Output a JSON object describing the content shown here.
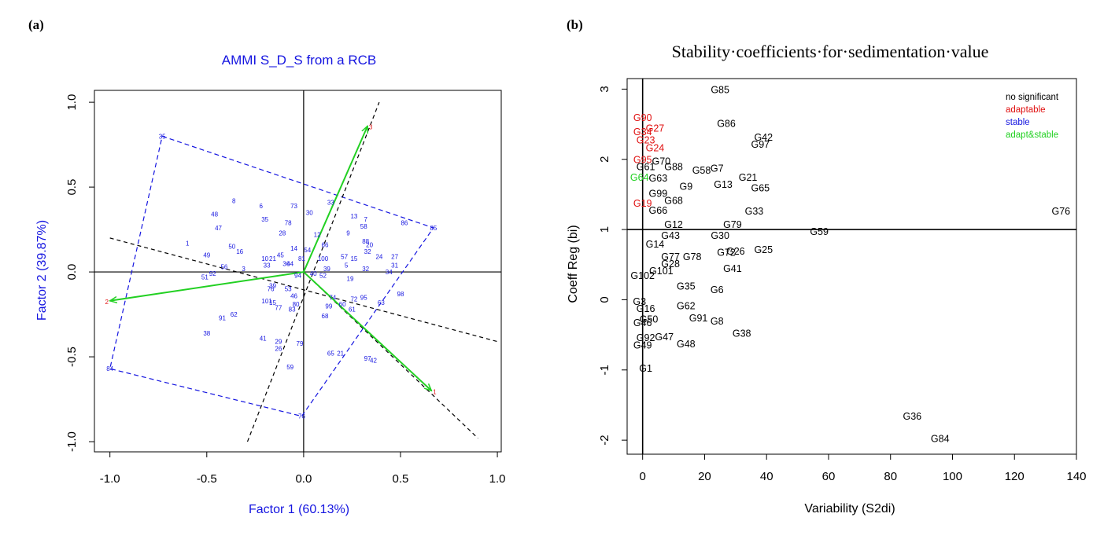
{
  "panels": {
    "a": "(a)",
    "b": "(b)"
  },
  "colors": {
    "blue": "#1515e0",
    "red": "#e01010",
    "green": "#22d022",
    "black": "#000000"
  },
  "chart_data": [
    {
      "type": "scatter",
      "title": "AMMI S_D_S from a RCB",
      "xlabel": "Factor 1 (60.13%)",
      "ylabel": "Factor 2 (39.87%)",
      "xlim": [
        -1.08,
        1.02
      ],
      "ylim": [
        -1.06,
        1.07
      ],
      "xticks": [
        "-1.0",
        "-0.5",
        "0.0",
        "0.5",
        "1.0"
      ],
      "yticks": [
        "-1.0",
        "-0.5",
        "0.0",
        "0.5",
        "1.0"
      ],
      "environments": [
        {
          "label": "1",
          "x": 0.66,
          "y": -0.7
        },
        {
          "label": "2",
          "x": -1.0,
          "y": -0.17
        },
        {
          "label": "3",
          "x": 0.33,
          "y": 0.86
        }
      ],
      "hull": [
        [
          -0.73,
          0.8
        ],
        [
          0.67,
          0.26
        ],
        [
          -0.01,
          -0.85
        ],
        [
          -1.0,
          -0.57
        ]
      ],
      "boundary_lines": [
        [
          [
            -1.0,
            0.2
          ],
          [
            1.0,
            -0.41
          ]
        ],
        [
          [
            -0.29,
            -1.0
          ],
          [
            0.39,
            1.0
          ]
        ],
        [
          [
            0.0,
            0.0
          ],
          [
            0.9,
            -0.98
          ]
        ]
      ],
      "genotypes": [
        {
          "label": "35",
          "x": -0.73,
          "y": 0.8
        },
        {
          "label": "8",
          "x": -0.36,
          "y": 0.42
        },
        {
          "label": "6",
          "x": -0.22,
          "y": 0.39
        },
        {
          "label": "73",
          "x": -0.05,
          "y": 0.39
        },
        {
          "label": "33",
          "x": 0.14,
          "y": 0.41
        },
        {
          "label": "48",
          "x": -0.46,
          "y": 0.34
        },
        {
          "label": "47",
          "x": -0.44,
          "y": 0.26
        },
        {
          "label": "35",
          "x": -0.2,
          "y": 0.31
        },
        {
          "label": "78",
          "x": -0.08,
          "y": 0.29
        },
        {
          "label": "28",
          "x": -0.11,
          "y": 0.23
        },
        {
          "label": "30",
          "x": 0.03,
          "y": 0.35
        },
        {
          "label": "13",
          "x": 0.26,
          "y": 0.33
        },
        {
          "label": "7",
          "x": 0.32,
          "y": 0.31
        },
        {
          "label": "58",
          "x": 0.31,
          "y": 0.27
        },
        {
          "label": "9",
          "x": 0.23,
          "y": 0.23
        },
        {
          "label": "86",
          "x": 0.52,
          "y": 0.29
        },
        {
          "label": "85",
          "x": 0.67,
          "y": 0.26
        },
        {
          "label": "12",
          "x": 0.07,
          "y": 0.22
        },
        {
          "label": "1",
          "x": -0.6,
          "y": 0.17
        },
        {
          "label": "50",
          "x": -0.37,
          "y": 0.15
        },
        {
          "label": "16",
          "x": -0.33,
          "y": 0.12
        },
        {
          "label": "14",
          "x": -0.05,
          "y": 0.14
        },
        {
          "label": "54",
          "x": 0.02,
          "y": 0.13
        },
        {
          "label": "66",
          "x": 0.11,
          "y": 0.16
        },
        {
          "label": "88",
          "x": 0.32,
          "y": 0.18
        },
        {
          "label": "20",
          "x": 0.34,
          "y": 0.16
        },
        {
          "label": "32",
          "x": 0.33,
          "y": 0.12
        },
        {
          "label": "49",
          "x": -0.5,
          "y": 0.1
        },
        {
          "label": "10",
          "x": -0.2,
          "y": 0.08
        },
        {
          "label": "21",
          "x": -0.16,
          "y": 0.08
        },
        {
          "label": "45",
          "x": -0.12,
          "y": 0.1
        },
        {
          "label": "81",
          "x": -0.01,
          "y": 0.08
        },
        {
          "label": "100",
          "x": 0.1,
          "y": 0.08
        },
        {
          "label": "57",
          "x": 0.21,
          "y": 0.09
        },
        {
          "label": "15",
          "x": 0.26,
          "y": 0.08
        },
        {
          "label": "24",
          "x": 0.39,
          "y": 0.09
        },
        {
          "label": "27",
          "x": 0.47,
          "y": 0.09
        },
        {
          "label": "3",
          "x": -0.31,
          "y": 0.02
        },
        {
          "label": "56",
          "x": -0.41,
          "y": 0.03
        },
        {
          "label": "33",
          "x": -0.19,
          "y": 0.04
        },
        {
          "label": "36",
          "x": -0.09,
          "y": 0.05
        },
        {
          "label": "44",
          "x": -0.07,
          "y": 0.05
        },
        {
          "label": "5",
          "x": 0.22,
          "y": 0.04
        },
        {
          "label": "32",
          "x": 0.32,
          "y": 0.02
        },
        {
          "label": "31",
          "x": 0.47,
          "y": 0.04
        },
        {
          "label": "34",
          "x": 0.44,
          "y": 0.0
        },
        {
          "label": "51",
          "x": -0.51,
          "y": -0.03
        },
        {
          "label": "92",
          "x": -0.47,
          "y": -0.01
        },
        {
          "label": "94",
          "x": -0.03,
          "y": -0.02
        },
        {
          "label": "40",
          "x": 0.05,
          "y": -0.01
        },
        {
          "label": "39",
          "x": 0.12,
          "y": 0.02
        },
        {
          "label": "52",
          "x": 0.1,
          "y": -0.02
        },
        {
          "label": "19",
          "x": 0.24,
          "y": -0.04
        },
        {
          "label": "39",
          "x": -0.16,
          "y": -0.08
        },
        {
          "label": "76",
          "x": -0.17,
          "y": -0.1
        },
        {
          "label": "53",
          "x": -0.08,
          "y": -0.1
        },
        {
          "label": "74",
          "x": 0.15,
          "y": -0.15
        },
        {
          "label": "72",
          "x": 0.26,
          "y": -0.16
        },
        {
          "label": "95",
          "x": 0.31,
          "y": -0.15
        },
        {
          "label": "98",
          "x": 0.5,
          "y": -0.13
        },
        {
          "label": "63",
          "x": 0.4,
          "y": -0.18
        },
        {
          "label": "101",
          "x": -0.19,
          "y": -0.17
        },
        {
          "label": "15",
          "x": -0.16,
          "y": -0.18
        },
        {
          "label": "77",
          "x": -0.13,
          "y": -0.21
        },
        {
          "label": "46",
          "x": -0.05,
          "y": -0.14
        },
        {
          "label": "99",
          "x": 0.13,
          "y": -0.2
        },
        {
          "label": "60",
          "x": 0.2,
          "y": -0.19
        },
        {
          "label": "61",
          "x": 0.25,
          "y": -0.22
        },
        {
          "label": "80",
          "x": -0.04,
          "y": -0.19
        },
        {
          "label": "83",
          "x": -0.06,
          "y": -0.22
        },
        {
          "label": "91",
          "x": -0.42,
          "y": -0.27
        },
        {
          "label": "62",
          "x": -0.36,
          "y": -0.25
        },
        {
          "label": "68",
          "x": 0.11,
          "y": -0.26
        },
        {
          "label": "38",
          "x": -0.5,
          "y": -0.36
        },
        {
          "label": "41",
          "x": -0.21,
          "y": -0.39
        },
        {
          "label": "29",
          "x": -0.13,
          "y": -0.41
        },
        {
          "label": "26",
          "x": -0.13,
          "y": -0.45
        },
        {
          "label": "79",
          "x": -0.02,
          "y": -0.42
        },
        {
          "label": "65",
          "x": 0.14,
          "y": -0.48
        },
        {
          "label": "21",
          "x": 0.19,
          "y": -0.48
        },
        {
          "label": "97",
          "x": 0.33,
          "y": -0.51
        },
        {
          "label": "42",
          "x": 0.36,
          "y": -0.52
        },
        {
          "label": "59",
          "x": -0.07,
          "y": -0.56
        },
        {
          "label": "84",
          "x": -1.0,
          "y": -0.57
        },
        {
          "label": "76",
          "x": -0.01,
          "y": -0.85
        }
      ]
    },
    {
      "type": "scatter",
      "title": "Stability·coefficients·for·sedimentation·value",
      "xlabel": "Variability (S2di)",
      "ylabel": "Coeff Reg (bi)",
      "xlim": [
        -5,
        140
      ],
      "ylim": [
        -2.2,
        3.15
      ],
      "xticks": [
        "0",
        "20",
        "40",
        "60",
        "80",
        "100",
        "120",
        "140"
      ],
      "yticks": [
        "-2",
        "-1",
        "0",
        "1",
        "2",
        "3"
      ],
      "ref_x": 0,
      "ref_y": 1,
      "legend": [
        {
          "label": "no significant",
          "color": "#000000"
        },
        {
          "label": "adaptable",
          "color": "#e01010"
        },
        {
          "label": "stable",
          "color": "#1515e0"
        },
        {
          "label": "adapt&stable",
          "color": "#22d022"
        }
      ],
      "legend_position": "top-right",
      "genotypes": [
        {
          "label": "G85",
          "x": 25,
          "y": 3.0,
          "group": "ns"
        },
        {
          "label": "G90",
          "x": 0,
          "y": 2.6,
          "group": "adaptable"
        },
        {
          "label": "G27",
          "x": 4,
          "y": 2.45,
          "group": "adaptable"
        },
        {
          "label": "G34",
          "x": 0,
          "y": 2.4,
          "group": "adaptable"
        },
        {
          "label": "G23",
          "x": 1,
          "y": 2.28,
          "group": "adaptable"
        },
        {
          "label": "G24",
          "x": 4,
          "y": 2.17,
          "group": "adaptable"
        },
        {
          "label": "G86",
          "x": 27,
          "y": 2.52,
          "group": "ns"
        },
        {
          "label": "G42",
          "x": 39,
          "y": 2.32,
          "group": "ns"
        },
        {
          "label": "G97",
          "x": 38,
          "y": 2.22,
          "group": "ns"
        },
        {
          "label": "G95",
          "x": 0,
          "y": 2.0,
          "group": "adaptable"
        },
        {
          "label": "G70",
          "x": 6,
          "y": 1.98,
          "group": "ns"
        },
        {
          "label": "G88",
          "x": 10,
          "y": 1.9,
          "group": "ns"
        },
        {
          "label": "G58",
          "x": 19,
          "y": 1.85,
          "group": "ns"
        },
        {
          "label": "G7",
          "x": 24,
          "y": 1.88,
          "group": "ns"
        },
        {
          "label": "G61",
          "x": 1,
          "y": 1.9,
          "group": "ns"
        },
        {
          "label": "G21",
          "x": 34,
          "y": 1.75,
          "group": "ns"
        },
        {
          "label": "G64",
          "x": -1,
          "y": 1.75,
          "group": "adapt&stable"
        },
        {
          "label": "G63",
          "x": 5,
          "y": 1.74,
          "group": "ns"
        },
        {
          "label": "G13",
          "x": 26,
          "y": 1.65,
          "group": "ns"
        },
        {
          "label": "G65",
          "x": 38,
          "y": 1.6,
          "group": "ns"
        },
        {
          "label": "G9",
          "x": 14,
          "y": 1.62,
          "group": "ns"
        },
        {
          "label": "G99",
          "x": 5,
          "y": 1.52,
          "group": "ns"
        },
        {
          "label": "G68",
          "x": 10,
          "y": 1.42,
          "group": "ns"
        },
        {
          "label": "G19",
          "x": 0,
          "y": 1.38,
          "group": "adaptable"
        },
        {
          "label": "G66",
          "x": 5,
          "y": 1.28,
          "group": "ns"
        },
        {
          "label": "G33",
          "x": 36,
          "y": 1.27,
          "group": "ns"
        },
        {
          "label": "G12",
          "x": 10,
          "y": 1.08,
          "group": "ns"
        },
        {
          "label": "G79",
          "x": 29,
          "y": 1.08,
          "group": "ns"
        },
        {
          "label": "G59",
          "x": 57,
          "y": 0.98,
          "group": "ns"
        },
        {
          "label": "G76",
          "x": 135,
          "y": 1.27,
          "group": "ns"
        },
        {
          "label": "G43",
          "x": 9,
          "y": 0.92,
          "group": "ns"
        },
        {
          "label": "G30",
          "x": 25,
          "y": 0.92,
          "group": "ns"
        },
        {
          "label": "G14",
          "x": 4,
          "y": 0.8,
          "group": "ns"
        },
        {
          "label": "G25",
          "x": 39,
          "y": 0.72,
          "group": "ns"
        },
        {
          "label": "G26",
          "x": 30,
          "y": 0.7,
          "group": "ns"
        },
        {
          "label": "G72",
          "x": 27,
          "y": 0.68,
          "group": "ns"
        },
        {
          "label": "G77",
          "x": 9,
          "y": 0.62,
          "group": "ns"
        },
        {
          "label": "G78",
          "x": 16,
          "y": 0.62,
          "group": "ns"
        },
        {
          "label": "G28",
          "x": 9,
          "y": 0.52,
          "group": "ns"
        },
        {
          "label": "G41",
          "x": 29,
          "y": 0.45,
          "group": "ns"
        },
        {
          "label": "G101",
          "x": 6,
          "y": 0.42,
          "group": "ns"
        },
        {
          "label": "G102",
          "x": 0,
          "y": 0.35,
          "group": "ns"
        },
        {
          "label": "G35",
          "x": 14,
          "y": 0.2,
          "group": "ns"
        },
        {
          "label": "G6",
          "x": 24,
          "y": 0.15,
          "group": "ns"
        },
        {
          "label": "G3",
          "x": -1,
          "y": -0.02,
          "group": "ns"
        },
        {
          "label": "G62",
          "x": 14,
          "y": -0.08,
          "group": "ns"
        },
        {
          "label": "G16",
          "x": 1,
          "y": -0.12,
          "group": "ns"
        },
        {
          "label": "G91",
          "x": 18,
          "y": -0.25,
          "group": "ns"
        },
        {
          "label": "G8",
          "x": 24,
          "y": -0.3,
          "group": "ns"
        },
        {
          "label": "G50",
          "x": 2,
          "y": -0.27,
          "group": "ns"
        },
        {
          "label": "G46",
          "x": 0,
          "y": -0.32,
          "group": "ns"
        },
        {
          "label": "G38",
          "x": 32,
          "y": -0.47,
          "group": "ns"
        },
        {
          "label": "G92",
          "x": 1,
          "y": -0.53,
          "group": "ns"
        },
        {
          "label": "G47",
          "x": 7,
          "y": -0.52,
          "group": "ns"
        },
        {
          "label": "G48",
          "x": 14,
          "y": -0.62,
          "group": "ns"
        },
        {
          "label": "G49",
          "x": 0,
          "y": -0.64,
          "group": "ns"
        },
        {
          "label": "G1",
          "x": 1,
          "y": -0.97,
          "group": "ns"
        },
        {
          "label": "G36",
          "x": 87,
          "y": -1.65,
          "group": "ns"
        },
        {
          "label": "G84",
          "x": 96,
          "y": -1.97,
          "group": "ns"
        }
      ]
    }
  ]
}
